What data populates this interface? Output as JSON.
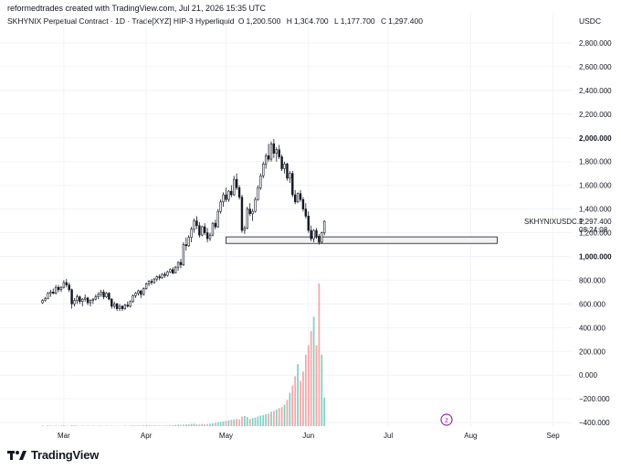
{
  "header": {
    "credit": "reformedtrades created with TradingView.com, Jul 21, 2026 15:35 UTC",
    "symbol": "SKHYNIX Perpetual Contract · 1D · Trade[XYZ] HIP-3 Hyperliquid",
    "ohlc": [
      {
        "label": "O",
        "value": "1,200.500"
      },
      {
        "label": "H",
        "value": "1,304.700"
      },
      {
        "label": "L",
        "value": "1,177.700"
      },
      {
        "label": "C",
        "value": "1,297.400"
      }
    ],
    "currency": "USDC"
  },
  "colors": {
    "up": "#ffffff",
    "down": "#131722",
    "wick": "#131722",
    "grid": "#f0f3fa",
    "vol_up": "#7fd1c4",
    "vol_down": "#f4a6a6",
    "support_fill": "#f2f2f2",
    "axis_text": "#131722"
  },
  "logo": {
    "text": "TradingView"
  },
  "price_label": {
    "symbol": "SKHYNIXUSDC.P",
    "price": "1,297.400",
    "countdown": "08:24:08"
  },
  "chart_data": {
    "type": "candlestick",
    "price_axis": {
      "ticks": [
        "2,800.000",
        "2,600.000",
        "2,400.000",
        "2,200.000",
        "2,000.000",
        "1,800.000",
        "1,600.000",
        "1,400.000",
        "1,200.000",
        "1,000.000",
        "800.000",
        "600.000",
        "400.000",
        "200.000",
        "0.000",
        "−200.000",
        "−400.000"
      ],
      "tick_values": [
        2800,
        2600,
        2400,
        2200,
        2000,
        1800,
        1600,
        1400,
        1200,
        1000,
        800,
        600,
        400,
        200,
        0,
        -200,
        -400
      ],
      "range": [
        -430,
        2900
      ]
    },
    "time_axis": {
      "labels": [
        "Mar",
        "Apr",
        "May",
        "Jun",
        "Jul",
        "Aug",
        "Sep"
      ],
      "label_days": [
        8,
        39,
        69,
        100,
        130,
        161,
        192
      ],
      "range_days": [
        -16,
        199
      ]
    },
    "support_zone": {
      "low": 1110,
      "high": 1165,
      "start_day": 69,
      "end_day": 171
    },
    "candles": [
      [
        0,
        610,
        640,
        600,
        630
      ],
      [
        1,
        630,
        660,
        620,
        645
      ],
      [
        2,
        645,
        700,
        640,
        690
      ],
      [
        3,
        690,
        720,
        660,
        700
      ],
      [
        4,
        700,
        730,
        680,
        690
      ],
      [
        5,
        690,
        760,
        680,
        740
      ],
      [
        6,
        740,
        760,
        700,
        720
      ],
      [
        7,
        720,
        750,
        700,
        740
      ],
      [
        8,
        740,
        800,
        730,
        780
      ],
      [
        9,
        780,
        810,
        740,
        760
      ],
      [
        10,
        760,
        780,
        700,
        720
      ],
      [
        11,
        720,
        730,
        560,
        600
      ],
      [
        12,
        600,
        650,
        580,
        630
      ],
      [
        13,
        630,
        680,
        600,
        660
      ],
      [
        14,
        660,
        670,
        600,
        620
      ],
      [
        15,
        620,
        650,
        580,
        640
      ],
      [
        16,
        640,
        680,
        620,
        650
      ],
      [
        17,
        650,
        660,
        590,
        610
      ],
      [
        18,
        610,
        640,
        580,
        630
      ],
      [
        19,
        630,
        650,
        600,
        640
      ],
      [
        20,
        640,
        680,
        630,
        660
      ],
      [
        21,
        660,
        700,
        640,
        680
      ],
      [
        22,
        680,
        720,
        660,
        700
      ],
      [
        23,
        700,
        720,
        640,
        660
      ],
      [
        24,
        660,
        700,
        650,
        690
      ],
      [
        25,
        690,
        700,
        630,
        640
      ],
      [
        26,
        640,
        650,
        560,
        580
      ],
      [
        27,
        580,
        620,
        560,
        600
      ],
      [
        28,
        600,
        610,
        540,
        560
      ],
      [
        29,
        560,
        600,
        540,
        580
      ],
      [
        30,
        580,
        590,
        540,
        560
      ],
      [
        31,
        560,
        600,
        550,
        590
      ],
      [
        32,
        590,
        620,
        570,
        580
      ],
      [
        33,
        580,
        630,
        570,
        620
      ],
      [
        34,
        620,
        680,
        610,
        670
      ],
      [
        35,
        670,
        700,
        650,
        690
      ],
      [
        36,
        690,
        720,
        670,
        710
      ],
      [
        37,
        710,
        720,
        650,
        680
      ],
      [
        38,
        680,
        740,
        670,
        730
      ],
      [
        39,
        730,
        780,
        720,
        770
      ],
      [
        40,
        770,
        800,
        750,
        790
      ],
      [
        41,
        790,
        810,
        760,
        780
      ],
      [
        42,
        780,
        820,
        770,
        810
      ],
      [
        43,
        810,
        840,
        790,
        830
      ],
      [
        44,
        830,
        850,
        800,
        820
      ],
      [
        45,
        820,
        860,
        810,
        850
      ],
      [
        46,
        850,
        870,
        820,
        840
      ],
      [
        47,
        840,
        880,
        830,
        870
      ],
      [
        48,
        870,
        900,
        860,
        890
      ],
      [
        49,
        890,
        910,
        850,
        860
      ],
      [
        50,
        860,
        920,
        860,
        910
      ],
      [
        51,
        910,
        960,
        880,
        950
      ],
      [
        52,
        950,
        980,
        900,
        930
      ],
      [
        53,
        930,
        1120,
        920,
        1100
      ],
      [
        54,
        1100,
        1160,
        1050,
        1090
      ],
      [
        55,
        1090,
        1180,
        1080,
        1160
      ],
      [
        56,
        1160,
        1250,
        1120,
        1230
      ],
      [
        57,
        1230,
        1320,
        1200,
        1300
      ],
      [
        58,
        1300,
        1340,
        1230,
        1260
      ],
      [
        59,
        1260,
        1290,
        1160,
        1180
      ],
      [
        60,
        1180,
        1260,
        1170,
        1250
      ],
      [
        61,
        1250,
        1280,
        1180,
        1200
      ],
      [
        62,
        1200,
        1240,
        1120,
        1150
      ],
      [
        63,
        1150,
        1200,
        1130,
        1180
      ],
      [
        64,
        1180,
        1290,
        1170,
        1280
      ],
      [
        65,
        1280,
        1310,
        1230,
        1250
      ],
      [
        66,
        1250,
        1400,
        1240,
        1380
      ],
      [
        67,
        1380,
        1480,
        1360,
        1460
      ],
      [
        68,
        1460,
        1540,
        1420,
        1520
      ],
      [
        69,
        1520,
        1580,
        1460,
        1480
      ],
      [
        70,
        1480,
        1560,
        1460,
        1550
      ],
      [
        71,
        1550,
        1600,
        1500,
        1520
      ],
      [
        72,
        1520,
        1680,
        1510,
        1650
      ],
      [
        73,
        1650,
        1700,
        1560,
        1580
      ],
      [
        74,
        1580,
        1600,
        1480,
        1500
      ],
      [
        75,
        1500,
        1520,
        1200,
        1220
      ],
      [
        76,
        1220,
        1260,
        1190,
        1240
      ],
      [
        77,
        1240,
        1420,
        1230,
        1400
      ],
      [
        78,
        1400,
        1450,
        1340,
        1360
      ],
      [
        79,
        1360,
        1400,
        1300,
        1380
      ],
      [
        80,
        1380,
        1500,
        1370,
        1480
      ],
      [
        81,
        1480,
        1600,
        1470,
        1580
      ],
      [
        82,
        1580,
        1700,
        1560,
        1680
      ],
      [
        83,
        1680,
        1800,
        1660,
        1780
      ],
      [
        84,
        1780,
        1870,
        1740,
        1850
      ],
      [
        85,
        1850,
        1950,
        1800,
        1820
      ],
      [
        86,
        1820,
        1970,
        1800,
        1950
      ],
      [
        87,
        1950,
        1990,
        1830,
        1870
      ],
      [
        88,
        1870,
        1920,
        1800,
        1900
      ],
      [
        89,
        1900,
        1940,
        1820,
        1840
      ],
      [
        90,
        1840,
        1860,
        1720,
        1740
      ],
      [
        91,
        1740,
        1800,
        1700,
        1780
      ],
      [
        92,
        1780,
        1790,
        1640,
        1660
      ],
      [
        93,
        1660,
        1720,
        1620,
        1700
      ],
      [
        94,
        1700,
        1720,
        1500,
        1520
      ],
      [
        95,
        1520,
        1560,
        1440,
        1460
      ],
      [
        96,
        1460,
        1540,
        1450,
        1530
      ],
      [
        97,
        1530,
        1560,
        1460,
        1480
      ],
      [
        98,
        1480,
        1500,
        1380,
        1400
      ],
      [
        99,
        1400,
        1450,
        1320,
        1340
      ],
      [
        100,
        1340,
        1380,
        1200,
        1220
      ],
      [
        101,
        1220,
        1260,
        1130,
        1150
      ],
      [
        102,
        1150,
        1230,
        1120,
        1220
      ],
      [
        103,
        1220,
        1240,
        1150,
        1170
      ],
      [
        104,
        1170,
        1190,
        1100,
        1120
      ],
      [
        105,
        1120,
        1210,
        1110,
        1200
      ],
      [
        106,
        1200,
        1305,
        1178,
        1297
      ]
    ],
    "volume": [
      [
        0,
        2
      ],
      [
        1,
        1
      ],
      [
        2,
        3
      ],
      [
        3,
        2
      ],
      [
        4,
        1
      ],
      [
        5,
        2
      ],
      [
        6,
        1
      ],
      [
        7,
        2
      ],
      [
        8,
        3
      ],
      [
        9,
        2
      ],
      [
        10,
        1
      ],
      [
        11,
        4
      ],
      [
        12,
        3
      ],
      [
        13,
        2
      ],
      [
        14,
        1
      ],
      [
        15,
        2
      ],
      [
        16,
        1
      ],
      [
        17,
        2
      ],
      [
        18,
        1
      ],
      [
        19,
        2
      ],
      [
        20,
        1
      ],
      [
        21,
        2
      ],
      [
        22,
        2
      ],
      [
        23,
        1
      ],
      [
        24,
        2
      ],
      [
        25,
        1
      ],
      [
        26,
        2
      ],
      [
        27,
        1
      ],
      [
        28,
        2
      ],
      [
        29,
        1
      ],
      [
        30,
        1
      ],
      [
        31,
        2
      ],
      [
        32,
        1
      ],
      [
        33,
        2
      ],
      [
        34,
        3
      ],
      [
        35,
        2
      ],
      [
        36,
        3
      ],
      [
        37,
        2
      ],
      [
        38,
        3
      ],
      [
        39,
        4
      ],
      [
        40,
        3
      ],
      [
        41,
        2
      ],
      [
        42,
        3
      ],
      [
        43,
        2
      ],
      [
        44,
        3
      ],
      [
        45,
        2
      ],
      [
        46,
        3
      ],
      [
        47,
        2
      ],
      [
        48,
        3
      ],
      [
        49,
        4
      ],
      [
        50,
        5
      ],
      [
        51,
        6
      ],
      [
        52,
        5
      ],
      [
        53,
        6
      ],
      [
        54,
        8
      ],
      [
        55,
        7
      ],
      [
        56,
        9
      ],
      [
        57,
        10
      ],
      [
        58,
        8
      ],
      [
        59,
        7
      ],
      [
        60,
        9
      ],
      [
        61,
        8
      ],
      [
        62,
        9
      ],
      [
        63,
        10
      ],
      [
        64,
        12
      ],
      [
        65,
        14
      ],
      [
        66,
        16
      ],
      [
        67,
        18
      ],
      [
        68,
        20
      ],
      [
        69,
        22
      ],
      [
        70,
        24
      ],
      [
        71,
        26
      ],
      [
        72,
        28
      ],
      [
        73,
        30
      ],
      [
        74,
        28
      ],
      [
        75,
        40
      ],
      [
        76,
        42
      ],
      [
        77,
        38
      ],
      [
        78,
        30
      ],
      [
        79,
        34
      ],
      [
        80,
        36
      ],
      [
        81,
        40
      ],
      [
        82,
        44
      ],
      [
        83,
        46
      ],
      [
        84,
        50
      ],
      [
        85,
        52
      ],
      [
        86,
        60
      ],
      [
        87,
        64
      ],
      [
        88,
        70
      ],
      [
        89,
        76
      ],
      [
        90,
        80
      ],
      [
        91,
        90
      ],
      [
        92,
        110
      ],
      [
        93,
        140
      ],
      [
        94,
        170
      ],
      [
        95,
        210
      ],
      [
        96,
        260
      ],
      [
        97,
        190
      ],
      [
        98,
        230
      ],
      [
        99,
        300
      ],
      [
        100,
        340
      ],
      [
        101,
        400
      ],
      [
        102,
        460
      ],
      [
        103,
        340
      ],
      [
        104,
        600
      ],
      [
        105,
        300
      ],
      [
        106,
        120
      ]
    ]
  }
}
